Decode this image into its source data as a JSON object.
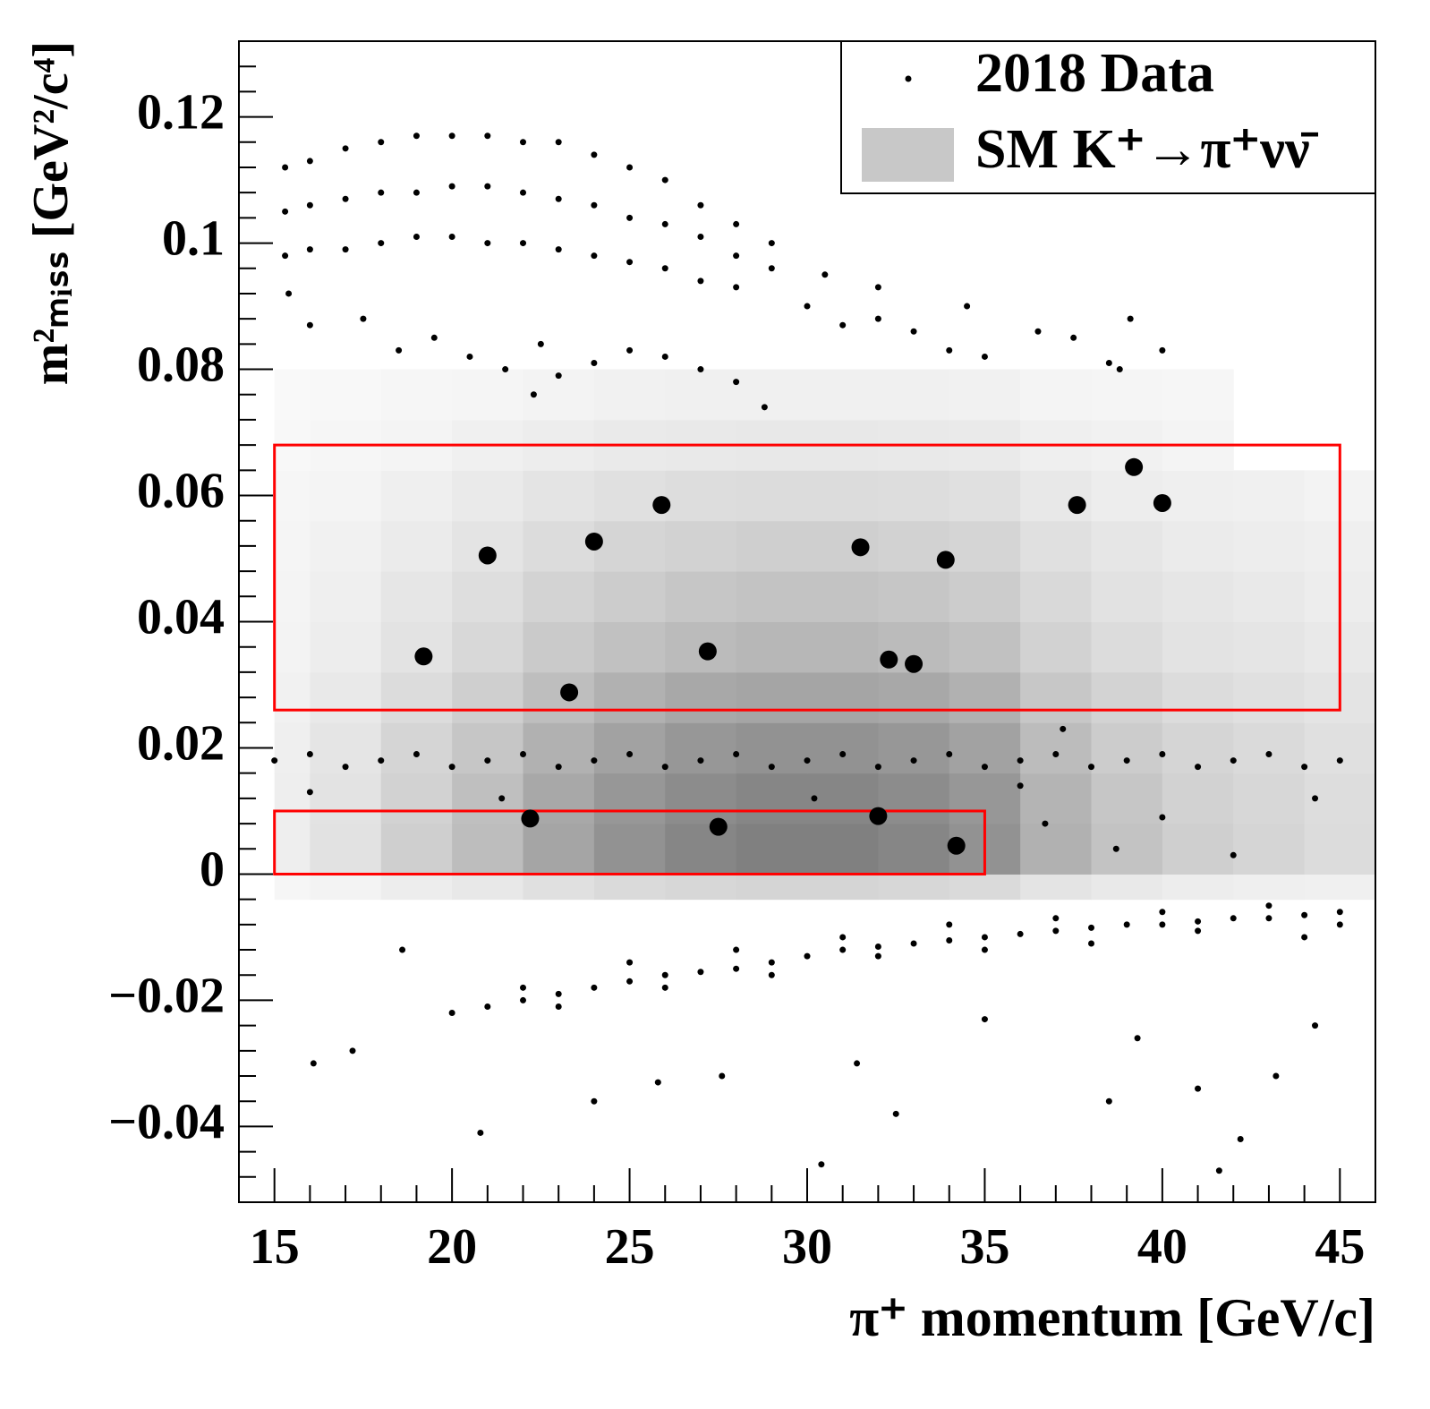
{
  "chart_data": {
    "type": "scatter",
    "x_label": "π⁺ momentum [GeV/c]",
    "y_label": "m²ₘᵢₛₛ [GeV²/c⁴]",
    "xlim": [
      14,
      46
    ],
    "ylim": [
      -0.052,
      0.132
    ],
    "xticks": [
      15,
      20,
      25,
      30,
      35,
      40,
      45
    ],
    "yticks": [
      {
        "value": -0.04,
        "label": "−0.04"
      },
      {
        "value": -0.02,
        "label": "−0.02"
      },
      0,
      0.02,
      0.04,
      0.06,
      0.08,
      0.1,
      0.12
    ],
    "legend": "upper right",
    "histogram2d": {
      "name": "SM K⁺→π⁺νν̄",
      "color": "#808080",
      "xbins": [
        15,
        16,
        18,
        20,
        22,
        24,
        26,
        28,
        30,
        32,
        34,
        36,
        38,
        40,
        42,
        44,
        46
      ],
      "ybins": [
        -0.004,
        0,
        0.008,
        0.016,
        0.024,
        0.032,
        0.04,
        0.048,
        0.056,
        0.064,
        0.072,
        0.08
      ],
      "z": [
        [
          3,
          6,
          11,
          15,
          21,
          26,
          29,
          30,
          30,
          29,
          26,
          18,
          14,
          11,
          9,
          8
        ],
        [
          10,
          20,
          35,
          50,
          70,
          85,
          95,
          100,
          100,
          95,
          85,
          60,
          45,
          35,
          30,
          25
        ],
        [
          10,
          19,
          33,
          48,
          67,
          81,
          90,
          95,
          95,
          90,
          81,
          57,
          43,
          33,
          29,
          24
        ],
        [
          9,
          17,
          30,
          43,
          60,
          72,
          81,
          85,
          85,
          81,
          72,
          51,
          38,
          30,
          26,
          21
        ],
        [
          7,
          14,
          25,
          35,
          49,
          60,
          67,
          70,
          70,
          67,
          60,
          42,
          32,
          25,
          21,
          18
        ],
        [
          6,
          11,
          19,
          28,
          39,
          47,
          52,
          55,
          55,
          52,
          47,
          33,
          25,
          19,
          17,
          14
        ],
        [
          5,
          9,
          16,
          23,
          32,
          38,
          43,
          45,
          45,
          43,
          38,
          27,
          20,
          16,
          14,
          11
        ],
        [
          4,
          7,
          12,
          18,
          25,
          30,
          33,
          35,
          35,
          33,
          30,
          21,
          16,
          12,
          11,
          9
        ],
        [
          3,
          5,
          9,
          13,
          18,
          21,
          24,
          25,
          25,
          24,
          21,
          15,
          11,
          9,
          8,
          6
        ],
        [
          2,
          3,
          5,
          8,
          11,
          13,
          14,
          15,
          15,
          14,
          13,
          9,
          7,
          5,
          0,
          0
        ],
        [
          1,
          2,
          3,
          4,
          6,
          7,
          8,
          8,
          8,
          8,
          7,
          5,
          4,
          3,
          0,
          0
        ]
      ]
    },
    "regions": [
      {
        "color": "#ff0000",
        "x": [
          15,
          35
        ],
        "y": [
          0,
          0.01
        ]
      },
      {
        "color": "#ff0000",
        "x": [
          15,
          45
        ],
        "y": [
          0.026,
          0.068
        ]
      }
    ],
    "series": [
      {
        "name": "2018 Data",
        "color": "#000000",
        "size": 3.5,
        "x": [
          15.3,
          16,
          17,
          18,
          19,
          20,
          21,
          22,
          23,
          24,
          25,
          26,
          27,
          28,
          29,
          15.3,
          16,
          17,
          18,
          19,
          20,
          21,
          22,
          23,
          24,
          25,
          26,
          27,
          28,
          29,
          15.3,
          16,
          17,
          18,
          19,
          20,
          21,
          22,
          23,
          24,
          25,
          26,
          27,
          28,
          15.4,
          16,
          17.5,
          18.5,
          19.5,
          20.5,
          21.5,
          22.5,
          23,
          24,
          25,
          26,
          27,
          28,
          28.8,
          30,
          31,
          32,
          33,
          34,
          35,
          36.5,
          37.5,
          38.5,
          30.5,
          32,
          34.5,
          39.1,
          40,
          38.8,
          22.3,
          15,
          16,
          17,
          18,
          19,
          20,
          21,
          22,
          23,
          24,
          25,
          26,
          27,
          28,
          29,
          30,
          31,
          32,
          33,
          34,
          35,
          36,
          37,
          38,
          39,
          40,
          41,
          42,
          43,
          44,
          45,
          20,
          21,
          22,
          23,
          24,
          25,
          26,
          27,
          28,
          29,
          30,
          31,
          32,
          33,
          34,
          35,
          36,
          37,
          38,
          39,
          40,
          41,
          42,
          43,
          44,
          45,
          22,
          25,
          28,
          31,
          34,
          37,
          40,
          43,
          45,
          44,
          41,
          38,
          35,
          32,
          29,
          26,
          23,
          16.1,
          17.2,
          18.6,
          20.8,
          24,
          25.8,
          27.6,
          30.4,
          31.4,
          32.5,
          35,
          38.5,
          39.3,
          41,
          41.6,
          42.2,
          43.2,
          44.3,
          36.7,
          38.7,
          40,
          42,
          44.3,
          37.2,
          16,
          21.4,
          30.2,
          36
        ],
        "y": [
          0.112,
          0.113,
          0.115,
          0.116,
          0.117,
          0.117,
          0.117,
          0.116,
          0.116,
          0.114,
          0.112,
          0.11,
          0.106,
          0.103,
          0.1,
          0.105,
          0.106,
          0.107,
          0.108,
          0.108,
          0.109,
          0.109,
          0.108,
          0.107,
          0.106,
          0.104,
          0.103,
          0.101,
          0.098,
          0.096,
          0.098,
          0.099,
          0.099,
          0.1,
          0.101,
          0.101,
          0.1,
          0.1,
          0.099,
          0.098,
          0.097,
          0.096,
          0.094,
          0.093,
          0.092,
          0.087,
          0.088,
          0.083,
          0.085,
          0.082,
          0.08,
          0.084,
          0.079,
          0.081,
          0.083,
          0.082,
          0.08,
          0.078,
          0.074,
          0.09,
          0.087,
          0.088,
          0.086,
          0.083,
          0.082,
          0.086,
          0.085,
          0.081,
          0.095,
          0.093,
          0.09,
          0.088,
          0.083,
          0.08,
          0.076,
          0.018,
          0.019,
          0.017,
          0.018,
          0.019,
          0.017,
          0.018,
          0.019,
          0.017,
          0.018,
          0.019,
          0.017,
          0.018,
          0.019,
          0.017,
          0.018,
          0.019,
          0.017,
          0.018,
          0.019,
          0.017,
          0.018,
          0.019,
          0.017,
          0.018,
          0.019,
          0.017,
          0.018,
          0.019,
          0.017,
          0.018,
          -0.022,
          -0.021,
          -0.02,
          -0.019,
          -0.018,
          -0.017,
          -0.016,
          -0.0155,
          -0.015,
          -0.014,
          -0.013,
          -0.012,
          -0.0115,
          -0.011,
          -0.0105,
          -0.01,
          -0.0095,
          -0.009,
          -0.0085,
          -0.008,
          -0.008,
          -0.0075,
          -0.007,
          -0.007,
          -0.0065,
          -0.006,
          -0.018,
          -0.014,
          -0.012,
          -0.01,
          -0.008,
          -0.007,
          -0.006,
          -0.005,
          -0.008,
          -0.01,
          -0.009,
          -0.011,
          -0.012,
          -0.013,
          -0.016,
          -0.018,
          -0.021,
          -0.03,
          -0.028,
          -0.012,
          -0.041,
          -0.036,
          -0.033,
          -0.032,
          -0.046,
          -0.03,
          -0.038,
          -0.023,
          -0.036,
          -0.026,
          -0.034,
          -0.047,
          -0.042,
          -0.032,
          -0.024,
          0.008,
          0.004,
          0.009,
          0.003,
          0.012,
          0.023,
          0.013,
          0.012,
          0.012,
          0.014
        ]
      },
      {
        "color": "#000000",
        "size": 10,
        "x": [
          19.2,
          21.0,
          22.2,
          23.3,
          24.0,
          25.9,
          27.2,
          27.5,
          31.5,
          32.0,
          32.3,
          33.0,
          33.9,
          34.2,
          37.6,
          39.2,
          40.0
        ],
        "y": [
          0.0345,
          0.0505,
          0.0088,
          0.0288,
          0.0527,
          0.0585,
          0.0353,
          0.0075,
          0.0518,
          0.0092,
          0.034,
          0.0333,
          0.0498,
          0.0045,
          0.0585,
          0.0645,
          0.0588
        ]
      }
    ]
  }
}
